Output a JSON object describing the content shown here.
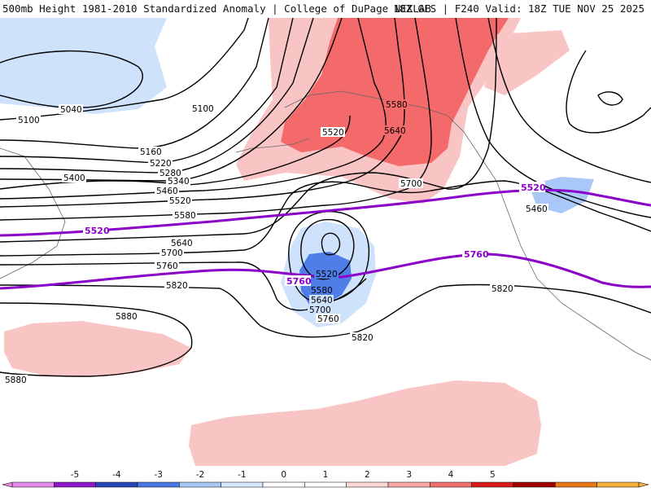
{
  "header": {
    "left_text": "500mb Height 1981-2010 Standardized Anomaly | College of DuPage NEXLAB",
    "right_text": "18Z GFS | F240 Valid: 18Z TUE NOV 25 2025"
  },
  "height_labels": {
    "l5040": "5040",
    "l5100a": "5100",
    "l5100b": "5100",
    "l5160": "5160",
    "l5220": "5220",
    "l5280": "5280",
    "l5340": "5340",
    "l5400": "5400",
    "l5460a": "5460",
    "l5460b": "5460",
    "l5520a": "5520",
    "l5520b": "5520",
    "l5520c": "5520",
    "l5580a": "5580",
    "l5580b": "5580",
    "l5580c": "5580",
    "l5640a": "5640",
    "l5640b": "5640",
    "l5640c": "5640",
    "l5700a": "5700",
    "l5700b": "5700",
    "l5700c": "5700",
    "l5760a": "5760",
    "l5760b": "5760",
    "l5820a": "5820",
    "l5820b": "5820",
    "l5820c": "5820",
    "l5880a": "5880",
    "l5880b": "5880"
  },
  "reference_contours": {
    "color": "#8a00c8",
    "line_5520_left": "5520",
    "line_5520_right": "5520",
    "line_5760_left": "5760",
    "line_5760_right": "5760"
  },
  "anomaly_colors": {
    "light_red": "#f9c4c4",
    "medium_red": "#f98e8e",
    "strong_red": "#f46a6a",
    "light_blue": "#cfe2fb",
    "medium_blue": "#a9c8f7",
    "strong_blue": "#4f7ee8"
  },
  "legend": {
    "ticks": [
      "-5",
      "-4",
      "-3",
      "-2",
      "-1",
      "0",
      "1",
      "2",
      "3",
      "4",
      "5"
    ],
    "colors": [
      "#e48ae8",
      "#8f18c8",
      "#2848b8",
      "#4878e0",
      "#a8c8f4",
      "#d8e8fc",
      "#ffffff",
      "#ffffff",
      "#fad8d8",
      "#f9a8a8",
      "#f07070",
      "#d81c1c",
      "#a00000",
      "#e87818",
      "#f8b040"
    ]
  }
}
